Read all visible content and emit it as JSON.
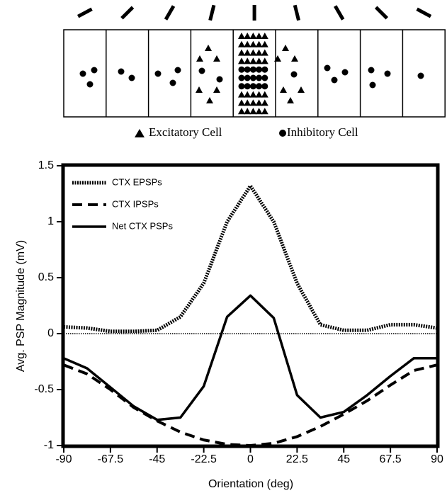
{
  "diagram": {
    "legend": [
      "Excitatory Cell",
      "Inhibitory Cell"
    ]
  },
  "chart_data": {
    "type": "line",
    "xlabel": "Orientation (deg)",
    "ylabel": "Avg. PSP Magnitude (mV)",
    "x": [
      -90,
      -78.75,
      -67.5,
      -56.25,
      -45,
      -33.75,
      -22.5,
      -11.25,
      0,
      11.25,
      22.5,
      33.75,
      45,
      56.25,
      67.5,
      78.75,
      90
    ],
    "series": [
      {
        "name": "CTX EPSPs",
        "color": "#000000",
        "linestyle": "dotted",
        "values": [
          0.06,
          0.05,
          0.02,
          0.02,
          0.03,
          0.15,
          0.45,
          1.0,
          1.32,
          1.0,
          0.45,
          0.08,
          0.03,
          0.03,
          0.08,
          0.08,
          0.05
        ]
      },
      {
        "name": "CTX IPSPs",
        "color": "#000000",
        "linestyle": "dashed",
        "values": [
          -0.28,
          -0.36,
          -0.5,
          -0.66,
          -0.78,
          -0.88,
          -0.95,
          -0.99,
          -1.0,
          -0.98,
          -0.92,
          -0.83,
          -0.72,
          -0.6,
          -0.46,
          -0.33,
          -0.28
        ]
      },
      {
        "name": "Net CTX PSPs",
        "color": "#000000",
        "linestyle": "solid",
        "values": [
          -0.22,
          -0.31,
          -0.48,
          -0.65,
          -0.77,
          -0.75,
          -0.47,
          0.15,
          0.34,
          0.14,
          -0.55,
          -0.75,
          -0.7,
          -0.55,
          -0.38,
          -0.22,
          -0.22
        ]
      }
    ],
    "xlim": [
      -90,
      90
    ],
    "xticks": [
      -90,
      -67.5,
      -45,
      -22.5,
      0,
      22.5,
      45,
      67.5,
      90
    ],
    "ylim": [
      -1,
      1.5
    ],
    "yticks": [
      -1,
      -0.5,
      0,
      0.5,
      1,
      1.5
    ],
    "grid": false,
    "legend": "upper left"
  }
}
